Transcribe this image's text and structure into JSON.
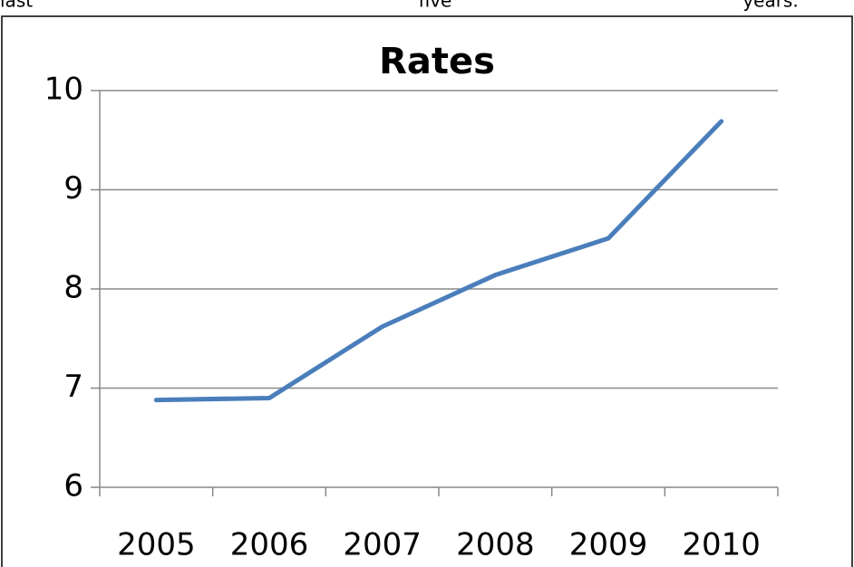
{
  "header_fragments": [
    "last",
    "five",
    "years."
  ],
  "chart_data": {
    "type": "line",
    "title": "Rates",
    "categories": [
      "2005",
      "2006",
      "2007",
      "2008",
      "2009",
      "2010"
    ],
    "series": [
      {
        "name": "Rates",
        "color": "#4a7ebb",
        "values": [
          6.88,
          6.9,
          7.62,
          8.14,
          8.51,
          9.69
        ]
      }
    ],
    "ylim": [
      6,
      10
    ],
    "yticks": [
      6,
      7,
      8,
      9,
      10
    ],
    "grid": true
  }
}
